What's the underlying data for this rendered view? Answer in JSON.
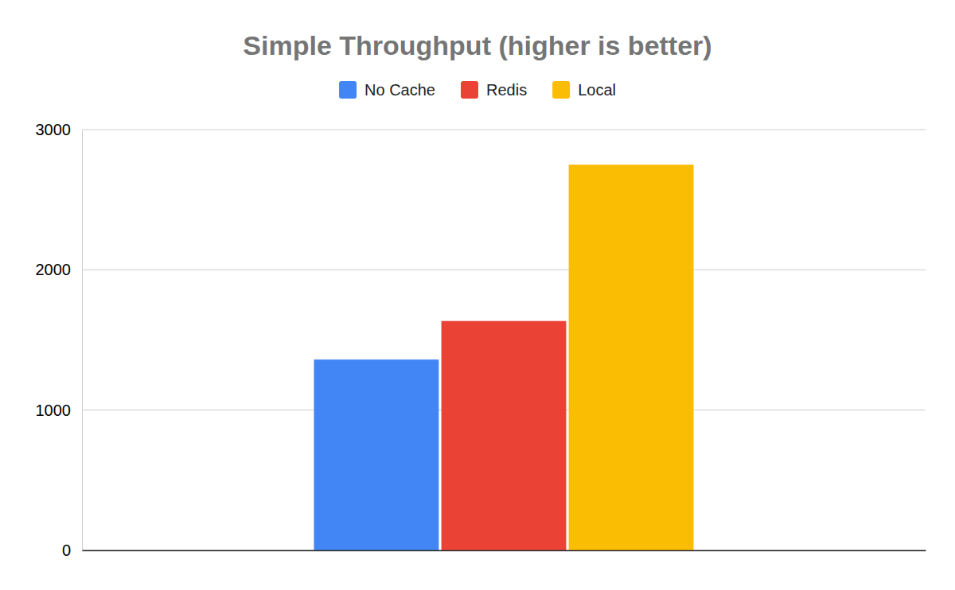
{
  "chart_data": {
    "type": "bar",
    "title": "Simple Throughput (higher is better)",
    "categories": [
      null
    ],
    "series": [
      {
        "name": "No Cache",
        "color": "#4285f4",
        "values": [
          1360
        ]
      },
      {
        "name": "Redis",
        "color": "#ea4335",
        "values": [
          1635
        ]
      },
      {
        "name": "Local",
        "color": "#fbbc04",
        "values": [
          2750
        ]
      }
    ],
    "ylim": [
      0,
      3000
    ],
    "yticks": [
      0,
      1000,
      2000,
      3000
    ],
    "grid": true,
    "legend": "top"
  }
}
